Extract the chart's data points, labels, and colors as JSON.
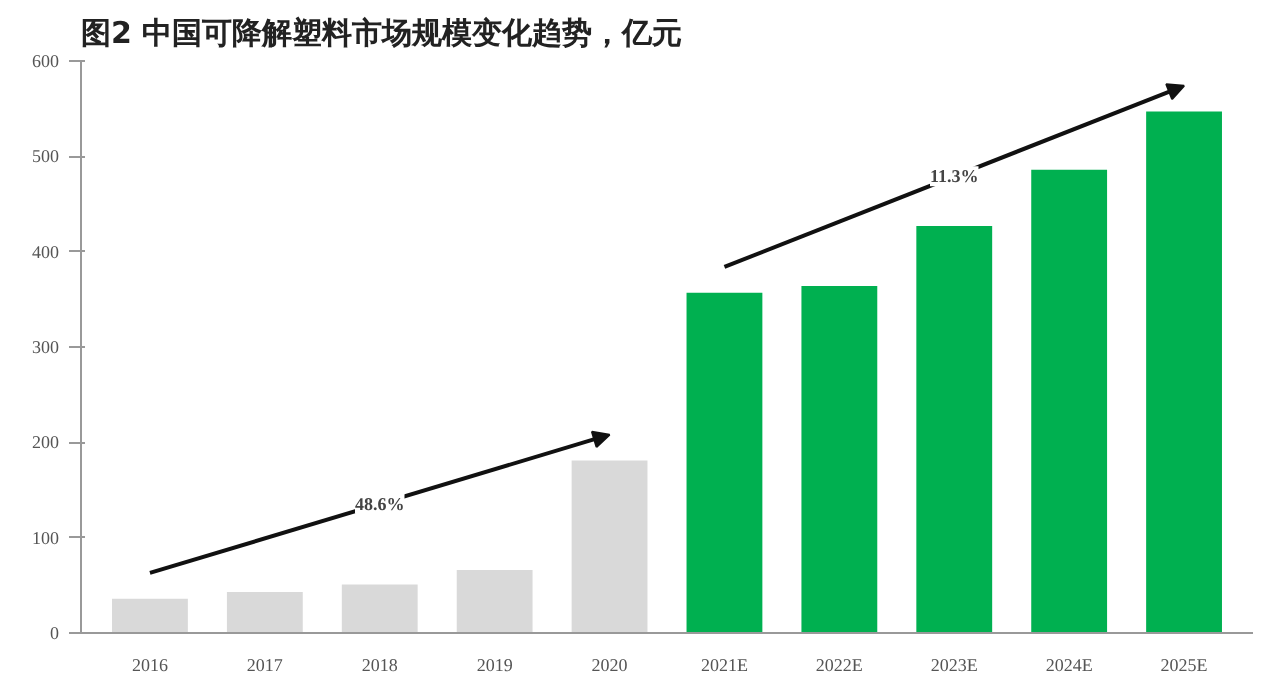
{
  "chart_data": {
    "type": "bar",
    "title": "图2 中国可降解塑料市场规模变化趋势，亿元",
    "categories": [
      "2016",
      "2017",
      "2018",
      "2019",
      "2020",
      "2021E",
      "2022E",
      "2023E",
      "2024E",
      "2025E"
    ],
    "values": [
      36,
      43,
      51,
      66,
      181,
      357,
      364,
      427,
      486,
      547
    ],
    "colors": [
      "#d9d9d9",
      "#d9d9d9",
      "#d9d9d9",
      "#d9d9d9",
      "#d9d9d9",
      "#00b050",
      "#00b050",
      "#00b050",
      "#00b050",
      "#00b050"
    ],
    "annotations": [
      "48.6%",
      "11.3%"
    ],
    "ylim": [
      0,
      600
    ],
    "yticks": [
      0,
      100,
      200,
      300,
      400,
      500,
      600
    ],
    "grid": false
  }
}
